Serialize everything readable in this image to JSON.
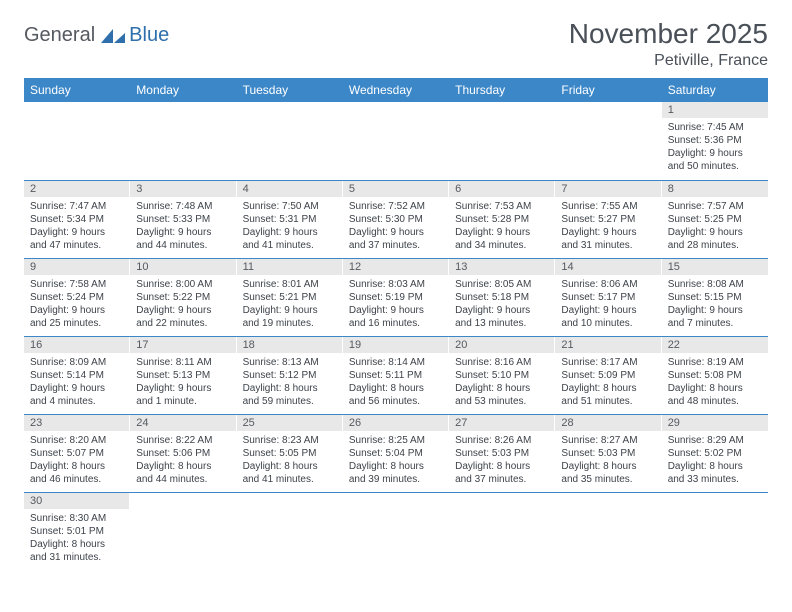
{
  "logo": {
    "text1": "General",
    "text2": "Blue"
  },
  "title": "November 2025",
  "subtitle": "Petiville, France",
  "colors": {
    "header_bg": "#3b87c8",
    "header_fg": "#ffffff",
    "daynum_bg": "#e8e8e8",
    "row_border": "#3b87c8",
    "page_bg": "#ffffff",
    "title_color": "#4a5058",
    "body_text": "#3d434a"
  },
  "weekdays": [
    "Sunday",
    "Monday",
    "Tuesday",
    "Wednesday",
    "Thursday",
    "Friday",
    "Saturday"
  ],
  "weeks": [
    [
      null,
      null,
      null,
      null,
      null,
      null,
      {
        "n": "1",
        "sr": "7:45 AM",
        "ss": "5:36 PM",
        "dl": "9 hours and 50 minutes."
      }
    ],
    [
      {
        "n": "2",
        "sr": "7:47 AM",
        "ss": "5:34 PM",
        "dl": "9 hours and 47 minutes."
      },
      {
        "n": "3",
        "sr": "7:48 AM",
        "ss": "5:33 PM",
        "dl": "9 hours and 44 minutes."
      },
      {
        "n": "4",
        "sr": "7:50 AM",
        "ss": "5:31 PM",
        "dl": "9 hours and 41 minutes."
      },
      {
        "n": "5",
        "sr": "7:52 AM",
        "ss": "5:30 PM",
        "dl": "9 hours and 37 minutes."
      },
      {
        "n": "6",
        "sr": "7:53 AM",
        "ss": "5:28 PM",
        "dl": "9 hours and 34 minutes."
      },
      {
        "n": "7",
        "sr": "7:55 AM",
        "ss": "5:27 PM",
        "dl": "9 hours and 31 minutes."
      },
      {
        "n": "8",
        "sr": "7:57 AM",
        "ss": "5:25 PM",
        "dl": "9 hours and 28 minutes."
      }
    ],
    [
      {
        "n": "9",
        "sr": "7:58 AM",
        "ss": "5:24 PM",
        "dl": "9 hours and 25 minutes."
      },
      {
        "n": "10",
        "sr": "8:00 AM",
        "ss": "5:22 PM",
        "dl": "9 hours and 22 minutes."
      },
      {
        "n": "11",
        "sr": "8:01 AM",
        "ss": "5:21 PM",
        "dl": "9 hours and 19 minutes."
      },
      {
        "n": "12",
        "sr": "8:03 AM",
        "ss": "5:19 PM",
        "dl": "9 hours and 16 minutes."
      },
      {
        "n": "13",
        "sr": "8:05 AM",
        "ss": "5:18 PM",
        "dl": "9 hours and 13 minutes."
      },
      {
        "n": "14",
        "sr": "8:06 AM",
        "ss": "5:17 PM",
        "dl": "9 hours and 10 minutes."
      },
      {
        "n": "15",
        "sr": "8:08 AM",
        "ss": "5:15 PM",
        "dl": "9 hours and 7 minutes."
      }
    ],
    [
      {
        "n": "16",
        "sr": "8:09 AM",
        "ss": "5:14 PM",
        "dl": "9 hours and 4 minutes."
      },
      {
        "n": "17",
        "sr": "8:11 AM",
        "ss": "5:13 PM",
        "dl": "9 hours and 1 minute."
      },
      {
        "n": "18",
        "sr": "8:13 AM",
        "ss": "5:12 PM",
        "dl": "8 hours and 59 minutes."
      },
      {
        "n": "19",
        "sr": "8:14 AM",
        "ss": "5:11 PM",
        "dl": "8 hours and 56 minutes."
      },
      {
        "n": "20",
        "sr": "8:16 AM",
        "ss": "5:10 PM",
        "dl": "8 hours and 53 minutes."
      },
      {
        "n": "21",
        "sr": "8:17 AM",
        "ss": "5:09 PM",
        "dl": "8 hours and 51 minutes."
      },
      {
        "n": "22",
        "sr": "8:19 AM",
        "ss": "5:08 PM",
        "dl": "8 hours and 48 minutes."
      }
    ],
    [
      {
        "n": "23",
        "sr": "8:20 AM",
        "ss": "5:07 PM",
        "dl": "8 hours and 46 minutes."
      },
      {
        "n": "24",
        "sr": "8:22 AM",
        "ss": "5:06 PM",
        "dl": "8 hours and 44 minutes."
      },
      {
        "n": "25",
        "sr": "8:23 AM",
        "ss": "5:05 PM",
        "dl": "8 hours and 41 minutes."
      },
      {
        "n": "26",
        "sr": "8:25 AM",
        "ss": "5:04 PM",
        "dl": "8 hours and 39 minutes."
      },
      {
        "n": "27",
        "sr": "8:26 AM",
        "ss": "5:03 PM",
        "dl": "8 hours and 37 minutes."
      },
      {
        "n": "28",
        "sr": "8:27 AM",
        "ss": "5:03 PM",
        "dl": "8 hours and 35 minutes."
      },
      {
        "n": "29",
        "sr": "8:29 AM",
        "ss": "5:02 PM",
        "dl": "8 hours and 33 minutes."
      }
    ],
    [
      {
        "n": "30",
        "sr": "8:30 AM",
        "ss": "5:01 PM",
        "dl": "8 hours and 31 minutes."
      },
      null,
      null,
      null,
      null,
      null,
      null
    ]
  ],
  "labels": {
    "sunrise": "Sunrise:",
    "sunset": "Sunset:",
    "daylight": "Daylight:"
  }
}
